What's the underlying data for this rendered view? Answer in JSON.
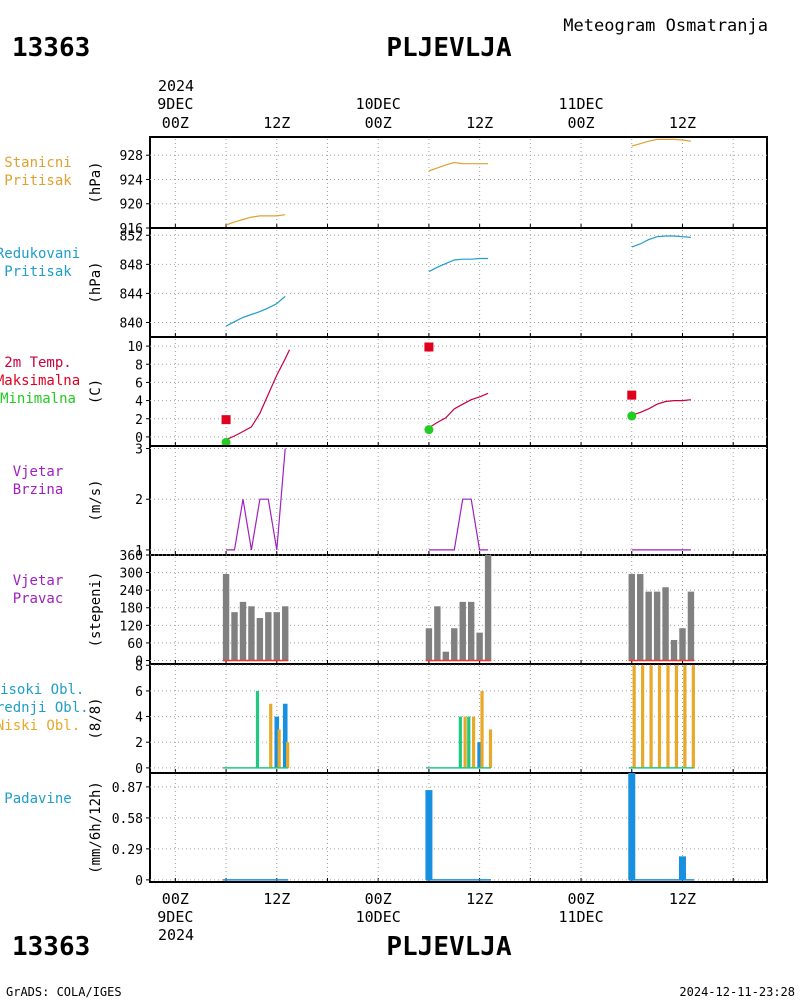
{
  "header": {
    "station_id": "13363",
    "station_name": "PLJEVLJA",
    "product": "Meteogram Osmatranja"
  },
  "footer": {
    "station_id": "13363",
    "station_name": "PLJEVLJA",
    "credit": "GrADS: COLA/IGES",
    "timestamp": "2024-12-11-23:28"
  },
  "time_axis": {
    "top_year": "2024",
    "bottom_year": "2024",
    "ticks": [
      {
        "t": 0,
        "label": "00Z",
        "date": "9DEC"
      },
      {
        "t": 12,
        "label": "12Z",
        "date": ""
      },
      {
        "t": 24,
        "label": "00Z",
        "date": "10DEC"
      },
      {
        "t": 36,
        "label": "12Z",
        "date": ""
      },
      {
        "t": 48,
        "label": "00Z",
        "date": "11DEC"
      },
      {
        "t": 60,
        "label": "12Z",
        "date": ""
      }
    ],
    "range_hours": [
      -3,
      70
    ]
  },
  "colors": {
    "pressure": "#e0a030",
    "reduced": "#1e9ec8",
    "tmax": "#e0001e",
    "tmin": "#22cc22",
    "temp_line": "#c8003c",
    "wind": "#a020c0",
    "bars": "#808080",
    "high": "#20c880",
    "mid": "#1890e0",
    "low": "#e8a828",
    "precip": "#1890e0",
    "zero": "#ff3030",
    "grid": "#a0a0a0"
  },
  "chart_data": [
    {
      "id": "station_pressure",
      "type": "line",
      "legend": [
        "Stanicni",
        "Pritisak"
      ],
      "ylabel": "(hPa)",
      "ylim": [
        916,
        931
      ],
      "yticks": [
        916,
        920,
        924,
        928
      ],
      "ytick_labels": [
        "916",
        "920",
        "924",
        "928"
      ],
      "series": [
        {
          "values": [
            [
              6,
              916.5
            ],
            [
              7,
              917.0
            ],
            [
              8,
              917.4
            ],
            [
              9,
              917.8
            ],
            [
              10,
              918.0
            ],
            [
              11,
              918.0
            ],
            [
              12,
              918.0
            ],
            [
              13,
              918.2
            ]
          ]
        },
        {
          "values": [
            [
              30,
              925.4
            ],
            [
              31,
              925.9
            ],
            [
              32,
              926.4
            ],
            [
              33,
              926.8
            ],
            [
              34,
              926.6
            ],
            [
              35,
              926.6
            ],
            [
              36,
              926.6
            ],
            [
              37,
              926.6
            ]
          ]
        },
        {
          "values": [
            [
              54,
              929.5
            ],
            [
              55,
              929.9
            ],
            [
              56,
              930.3
            ],
            [
              57,
              930.6
            ],
            [
              58,
              930.6
            ],
            [
              59,
              930.6
            ],
            [
              60,
              930.5
            ],
            [
              61,
              930.3
            ]
          ]
        }
      ]
    },
    {
      "id": "reduced_pressure",
      "type": "line",
      "legend": [
        "Redukovani",
        "Pritisak"
      ],
      "ylabel": "(hPa)",
      "ylim": [
        838,
        853
      ],
      "yticks": [
        840,
        844,
        848,
        852
      ],
      "ytick_labels": [
        "840",
        "844",
        "848",
        "852"
      ],
      "series": [
        {
          "values": [
            [
              6,
              839.5
            ],
            [
              7,
              840.1
            ],
            [
              8,
              840.7
            ],
            [
              9,
              841.1
            ],
            [
              10,
              841.5
            ],
            [
              11,
              842.0
            ],
            [
              12,
              842.6
            ],
            [
              13,
              843.6
            ]
          ]
        },
        {
          "values": [
            [
              30,
              847.0
            ],
            [
              31,
              847.6
            ],
            [
              32,
              848.1
            ],
            [
              33,
              848.6
            ],
            [
              34,
              848.7
            ],
            [
              35,
              848.7
            ],
            [
              36,
              848.8
            ],
            [
              37,
              848.8
            ]
          ]
        },
        {
          "values": [
            [
              54,
              850.4
            ],
            [
              55,
              850.8
            ],
            [
              56,
              851.4
            ],
            [
              57,
              851.8
            ],
            [
              58,
              851.9
            ],
            [
              59,
              851.9
            ],
            [
              60,
              851.8
            ],
            [
              61,
              851.7
            ]
          ]
        }
      ]
    },
    {
      "id": "temperature",
      "type": "line",
      "legend": [
        "2m Temp.",
        "Maksimalna",
        "Minimalna"
      ],
      "ylabel": "(C)",
      "ylim": [
        -1,
        11
      ],
      "yticks": [
        0,
        2,
        4,
        6,
        8,
        10
      ],
      "ytick_labels": [
        "0",
        "2",
        "4",
        "6",
        "8",
        "10"
      ],
      "series": [
        {
          "name": "2m Temp.",
          "values": [
            [
              6,
              -0.3
            ],
            [
              7,
              0.1
            ],
            [
              8,
              0.6
            ],
            [
              9,
              1.1
            ],
            [
              10,
              2.6
            ],
            [
              11,
              4.7
            ],
            [
              12,
              6.8
            ],
            [
              13,
              8.6
            ],
            [
              13.5,
              9.6
            ]
          ]
        },
        {
          "name": "2m Temp.",
          "values": [
            [
              30,
              1.0
            ],
            [
              31,
              1.6
            ],
            [
              32,
              2.1
            ],
            [
              33,
              3.1
            ],
            [
              34,
              3.6
            ],
            [
              35,
              4.1
            ],
            [
              36,
              4.4
            ],
            [
              37,
              4.8
            ]
          ]
        },
        {
          "name": "2m Temp.",
          "values": [
            [
              54,
              2.4
            ],
            [
              55,
              2.7
            ],
            [
              56,
              3.1
            ],
            [
              57,
              3.6
            ],
            [
              58,
              3.9
            ],
            [
              59,
              4.0
            ],
            [
              60,
              4.0
            ],
            [
              61,
              4.1
            ]
          ]
        }
      ],
      "tmax": [
        [
          6,
          1.9
        ],
        [
          30,
          9.9
        ],
        [
          54,
          4.6
        ]
      ],
      "tmin": [
        [
          6,
          -0.6
        ],
        [
          30,
          0.8
        ],
        [
          54,
          2.3
        ]
      ]
    },
    {
      "id": "wind_speed",
      "type": "line",
      "legend": [
        "Vjetar",
        "Brzina"
      ],
      "ylabel": "(m/s)",
      "ylim": [
        0.9,
        3.05
      ],
      "yticks": [
        1,
        2,
        3
      ],
      "ytick_labels": [
        "1",
        "2",
        "3"
      ],
      "series": [
        {
          "values": [
            [
              6,
              1
            ],
            [
              7,
              1
            ],
            [
              8,
              2
            ],
            [
              9,
              1
            ],
            [
              10,
              2
            ],
            [
              11,
              2
            ],
            [
              12,
              1
            ],
            [
              13,
              3
            ]
          ]
        },
        {
          "values": [
            [
              30,
              1
            ],
            [
              31,
              1
            ],
            [
              32,
              1
            ],
            [
              33,
              1
            ],
            [
              34,
              2
            ],
            [
              35,
              2
            ],
            [
              36,
              1
            ],
            [
              37,
              1
            ]
          ]
        },
        {
          "values": [
            [
              54,
              1
            ],
            [
              55,
              1
            ],
            [
              56,
              1
            ],
            [
              57,
              1
            ],
            [
              58,
              1
            ],
            [
              59,
              1
            ],
            [
              60,
              1
            ],
            [
              61,
              1
            ]
          ]
        }
      ]
    },
    {
      "id": "wind_direction",
      "type": "bar",
      "legend": [
        "Vjetar",
        "Pravac"
      ],
      "ylabel": "(stepeni)",
      "ylim": [
        -12,
        360
      ],
      "yticks": [
        0,
        60,
        120,
        180,
        240,
        300,
        360
      ],
      "ytick_labels": [
        "0",
        "60",
        "120",
        "180",
        "240",
        "300",
        "360"
      ],
      "x": [
        6,
        7,
        8,
        9,
        10,
        11,
        12,
        13,
        30,
        31,
        32,
        33,
        34,
        35,
        36,
        37,
        54,
        55,
        56,
        57,
        58,
        59,
        60,
        61
      ],
      "values": [
        295,
        165,
        200,
        185,
        145,
        165,
        165,
        185,
        110,
        185,
        30,
        110,
        200,
        200,
        95,
        360,
        295,
        295,
        235,
        235,
        250,
        70,
        110,
        235
      ]
    },
    {
      "id": "cloud_cover",
      "type": "bar",
      "legend": [
        "Visoki Obl.",
        "Srednji Obl.",
        "Niski Obl."
      ],
      "ylabel": "(8/8)",
      "ylim": [
        -0.4,
        8.1
      ],
      "yticks": [
        0,
        2,
        4,
        6,
        8
      ],
      "ytick_labels": [
        "0",
        "2",
        "4",
        "6",
        "8"
      ],
      "x": [
        6,
        7,
        8,
        9,
        10,
        11,
        12,
        13,
        30,
        31,
        32,
        33,
        34,
        35,
        36,
        37,
        54,
        55,
        56,
        57,
        58,
        59,
        60,
        61
      ],
      "series": [
        {
          "name": "Visoki Obl.",
          "values": [
            0,
            0,
            0,
            0,
            6,
            0,
            0,
            0,
            0,
            0,
            0,
            0,
            4,
            4,
            0,
            0,
            0,
            0,
            0,
            0,
            0,
            0,
            0,
            0
          ]
        },
        {
          "name": "Srednji Obl.",
          "values": [
            0,
            0,
            0,
            0,
            0,
            0,
            4,
            5,
            0,
            0,
            0,
            0,
            0,
            0,
            2,
            0,
            0,
            0,
            0,
            0,
            0,
            0,
            0,
            0
          ]
        },
        {
          "name": "Niski Obl.",
          "values": [
            0,
            0,
            0,
            0,
            0,
            5,
            3,
            2,
            0,
            0,
            0,
            0,
            4,
            4,
            6,
            3,
            8,
            8,
            8,
            8,
            8,
            8,
            8,
            8
          ]
        }
      ]
    },
    {
      "id": "precipitation",
      "type": "bar",
      "legend": [
        "Padavine"
      ],
      "ylabel": "(mm/6h/12h)",
      "ylim": [
        -0.02,
        1.0
      ],
      "yticks": [
        0,
        0.29,
        0.58,
        0.87
      ],
      "ytick_labels": [
        "0",
        "0.29",
        "0.58",
        "0.87"
      ],
      "x": [
        6,
        7,
        8,
        9,
        10,
        11,
        12,
        13,
        30,
        31,
        32,
        33,
        34,
        35,
        36,
        37,
        54,
        55,
        56,
        57,
        58,
        59,
        60,
        61
      ],
      "values": [
        0,
        0,
        0,
        0,
        0,
        0,
        0,
        0,
        0.84,
        0,
        0,
        0,
        0,
        0,
        0,
        0,
        1.05,
        0,
        0,
        0,
        0,
        0,
        0.22,
        0
      ]
    }
  ]
}
